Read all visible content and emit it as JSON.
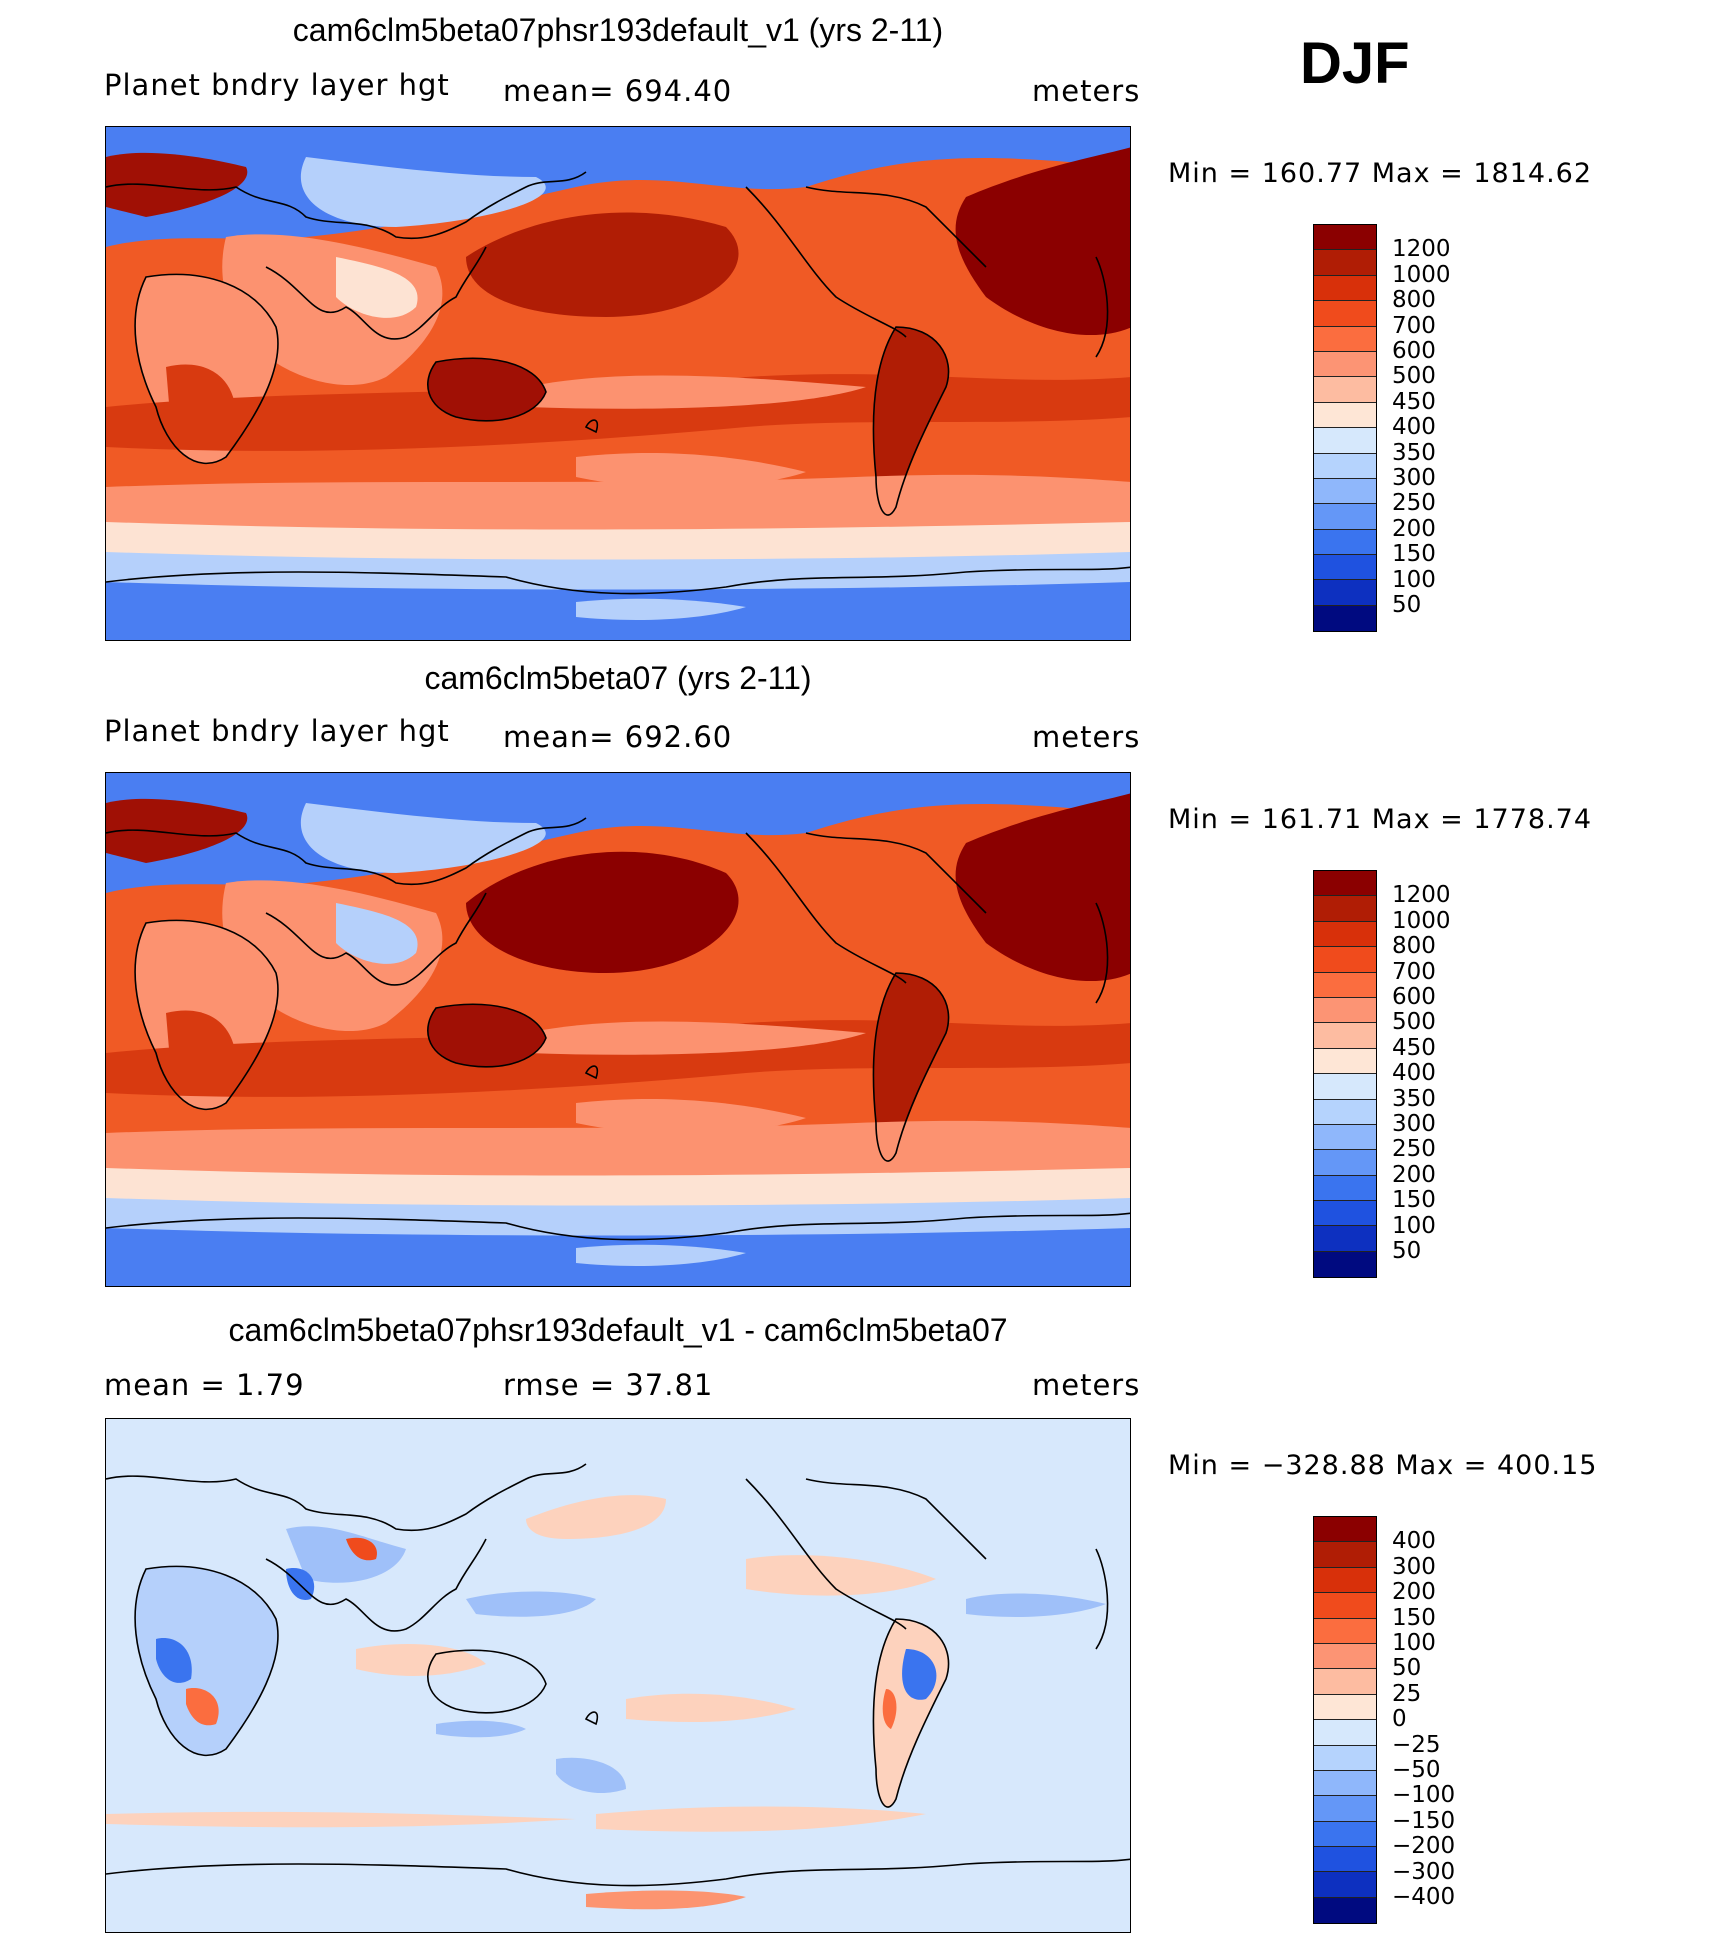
{
  "season": "DJF",
  "panels": [
    {
      "title": "cam6clm5beta07phsr193default_v1 (yrs 2-11)",
      "left_text": "Planet bndry layer hgt",
      "mid_text": "mean=  694.40",
      "right_text": "meters",
      "minmax": "Min  =  160.77  Max  =  1814.62",
      "colorbar": {
        "labels": [
          "1200",
          "1000",
          "800",
          "700",
          "600",
          "500",
          "450",
          "400",
          "350",
          "300",
          "250",
          "200",
          "150",
          "100",
          "50"
        ],
        "colors": [
          "#8b0000",
          "#b01d05",
          "#d8300a",
          "#f04b1c",
          "#fb6d3f",
          "#fc9474",
          "#fdbca1",
          "#fee6d6",
          "#d6e8fc",
          "#b5d3fd",
          "#8fb7fb",
          "#6497f7",
          "#3a74ef",
          "#1f52e0",
          "#0d30c0",
          "#000a80"
        ]
      }
    },
    {
      "title": "cam6clm5beta07 (yrs 2-11)",
      "left_text": "Planet bndry layer hgt",
      "mid_text": "mean=  692.60",
      "right_text": "meters",
      "minmax": "Min  =  161.71  Max  =  1778.74",
      "colorbar": {
        "labels": [
          "1200",
          "1000",
          "800",
          "700",
          "600",
          "500",
          "450",
          "400",
          "350",
          "300",
          "250",
          "200",
          "150",
          "100",
          "50"
        ],
        "colors": [
          "#8b0000",
          "#b01d05",
          "#d8300a",
          "#f04b1c",
          "#fb6d3f",
          "#fc9474",
          "#fdbca1",
          "#fee6d6",
          "#d6e8fc",
          "#b5d3fd",
          "#8fb7fb",
          "#6497f7",
          "#3a74ef",
          "#1f52e0",
          "#0d30c0",
          "#000a80"
        ]
      }
    },
    {
      "title": "cam6clm5beta07phsr193default_v1 - cam6clm5beta07",
      "left_text": "mean =     1.79",
      "mid_text": "rmse =    37.81",
      "right_text": "meters",
      "minmax": "Min  =  −328.88  Max  =  400.15",
      "colorbar": {
        "labels": [
          "400",
          "300",
          "200",
          "150",
          "100",
          "50",
          "25",
          "0",
          "−25",
          "−50",
          "−100",
          "−150",
          "−200",
          "−300",
          "−400"
        ],
        "colors": [
          "#8b0000",
          "#b01d05",
          "#d8300a",
          "#f04b1c",
          "#fb6d3f",
          "#fc9474",
          "#fdbca1",
          "#fee6d6",
          "#d6e8fc",
          "#b5d3fd",
          "#8fb7fb",
          "#6497f7",
          "#3a74ef",
          "#1f52e0",
          "#0d30c0",
          "#000a80"
        ]
      }
    }
  ],
  "palette": {
    "land_dark": "#a01005",
    "ocean_high": "#d83a10",
    "ocean_mid": "#f05a25",
    "ocean_light": "#fc9270",
    "pale": "#fde3d3",
    "cold_light": "#b5d0fb",
    "cold": "#4a7ef2",
    "cold_dark": "#2c5fe8",
    "diff_neutral": "#d7e8fc",
    "diff_warm": "#fdd2bd",
    "diff_blue": "#9fc0f9"
  }
}
